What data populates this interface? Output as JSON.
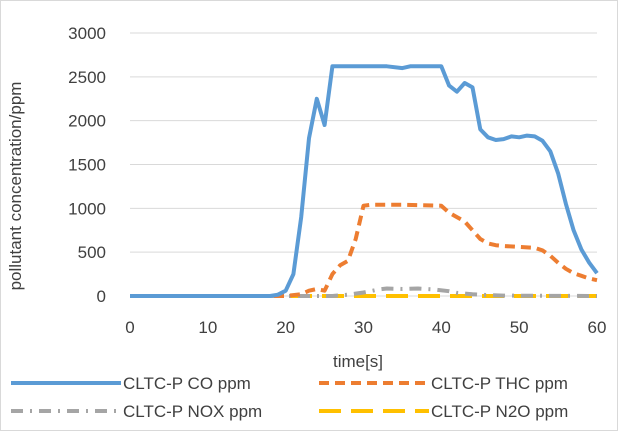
{
  "chart_data": {
    "type": "line",
    "xlabel": "time[s]",
    "ylabel": "pollutant concentration/ppm",
    "xlim": [
      0,
      60
    ],
    "ylim": [
      0,
      3000
    ],
    "x_ticks": [
      "0",
      "10",
      "20",
      "30",
      "40",
      "50",
      "60"
    ],
    "y_ticks": [
      "0",
      "500",
      "1000",
      "1500",
      "2000",
      "2500",
      "3000"
    ],
    "grid": "horizontal",
    "legend_position": "bottom",
    "series": [
      {
        "name": "CLTC-P CO ppm",
        "color": "#5b9bd5",
        "style": "solid",
        "points": [
          [
            0,
            0
          ],
          [
            18,
            0
          ],
          [
            19,
            15
          ],
          [
            20,
            60
          ],
          [
            21,
            250
          ],
          [
            22,
            900
          ],
          [
            23,
            1800
          ],
          [
            24,
            2250
          ],
          [
            25,
            1950
          ],
          [
            26,
            2620
          ],
          [
            27,
            2620
          ],
          [
            30,
            2620
          ],
          [
            33,
            2620
          ],
          [
            35,
            2600
          ],
          [
            36,
            2620
          ],
          [
            40,
            2620
          ],
          [
            41,
            2400
          ],
          [
            42,
            2330
          ],
          [
            43,
            2430
          ],
          [
            44,
            2380
          ],
          [
            45,
            1900
          ],
          [
            46,
            1810
          ],
          [
            47,
            1780
          ],
          [
            48,
            1790
          ],
          [
            49,
            1820
          ],
          [
            50,
            1810
          ],
          [
            51,
            1830
          ],
          [
            52,
            1820
          ],
          [
            53,
            1770
          ],
          [
            54,
            1650
          ],
          [
            55,
            1400
          ],
          [
            56,
            1050
          ],
          [
            57,
            750
          ],
          [
            58,
            530
          ],
          [
            59,
            380
          ],
          [
            60,
            260
          ]
        ]
      },
      {
        "name": "CLTC-P THC ppm",
        "color": "#ed7d31",
        "style": "dash",
        "points": [
          [
            0,
            0
          ],
          [
            20,
            0
          ],
          [
            22,
            20
          ],
          [
            23,
            60
          ],
          [
            24,
            80
          ],
          [
            25,
            60
          ],
          [
            26,
            250
          ],
          [
            27,
            350
          ],
          [
            28,
            400
          ],
          [
            29,
            650
          ],
          [
            30,
            1030
          ],
          [
            31,
            1040
          ],
          [
            35,
            1040
          ],
          [
            40,
            1030
          ],
          [
            41,
            950
          ],
          [
            42,
            900
          ],
          [
            43,
            850
          ],
          [
            44,
            750
          ],
          [
            45,
            650
          ],
          [
            46,
            600
          ],
          [
            47,
            580
          ],
          [
            48,
            570
          ],
          [
            50,
            560
          ],
          [
            52,
            550
          ],
          [
            53,
            520
          ],
          [
            54,
            460
          ],
          [
            55,
            380
          ],
          [
            56,
            310
          ],
          [
            57,
            260
          ],
          [
            58,
            230
          ],
          [
            59,
            200
          ],
          [
            60,
            180
          ]
        ]
      },
      {
        "name": "CLTC-P NOX ppm",
        "color": "#a5a5a5",
        "style": "dashdot",
        "points": [
          [
            0,
            0
          ],
          [
            26,
            0
          ],
          [
            28,
            15
          ],
          [
            30,
            40
          ],
          [
            32,
            75
          ],
          [
            33,
            85
          ],
          [
            35,
            80
          ],
          [
            37,
            85
          ],
          [
            39,
            75
          ],
          [
            41,
            55
          ],
          [
            42,
            35
          ],
          [
            44,
            20
          ],
          [
            46,
            10
          ],
          [
            48,
            5
          ],
          [
            50,
            3
          ],
          [
            60,
            0
          ]
        ]
      },
      {
        "name": "CLTC-P N2O ppm",
        "color": "#ffc000",
        "style": "longdash",
        "points": [
          [
            0,
            0
          ],
          [
            60,
            0
          ]
        ]
      }
    ]
  }
}
